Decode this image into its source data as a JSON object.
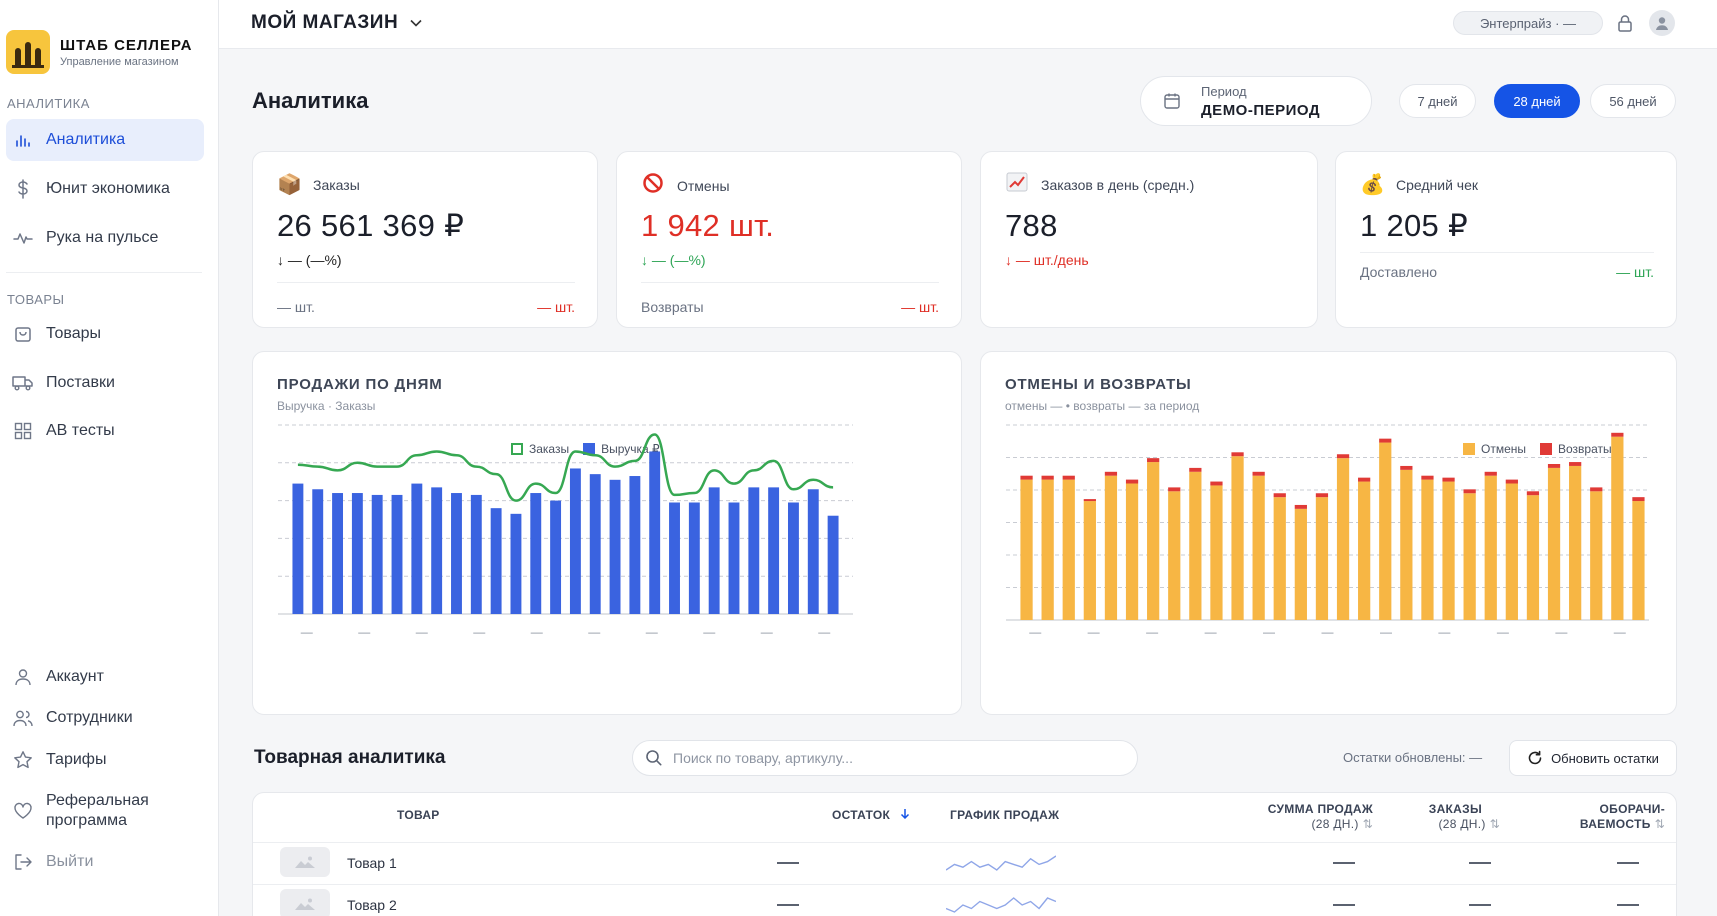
{
  "brand": {
    "title": "ШТАБ СЕЛЛЕРА",
    "subtitle": "Управление магазином"
  },
  "sidebar": {
    "section_analytics": "АНАЛИТИКА",
    "section_goods": "ТОВАРЫ",
    "items": [
      {
        "label": "Аналитика",
        "icon": "bar-chart-icon"
      },
      {
        "label": "Юнит экономика",
        "icon": "dollar-icon"
      },
      {
        "label": "Рука на пульсе",
        "icon": "pulse-icon"
      },
      {
        "label": "Товары",
        "icon": "bag-icon"
      },
      {
        "label": "Поставки",
        "icon": "truck-icon"
      },
      {
        "label": "AB тесты",
        "icon": "grid-icon"
      }
    ],
    "bottom": [
      {
        "label": "Аккаунт",
        "icon": "user-icon"
      },
      {
        "label": "Сотрудники",
        "icon": "users-icon"
      },
      {
        "label": "Тарифы",
        "icon": "star-icon"
      },
      {
        "label": "Реферальная программа",
        "icon": "heart-icon"
      },
      {
        "label": "Выйти",
        "icon": "logout-icon"
      }
    ]
  },
  "topbar": {
    "store": "МОЙ МАГАЗИН",
    "plan": "Энтерпрайз · —"
  },
  "page": {
    "title": "Аналитика"
  },
  "period": {
    "label": "Период",
    "value": "ДЕМО-ПЕРИОД",
    "options": [
      "7 дней",
      "28 дней",
      "56 дней"
    ],
    "selected": "28 дней"
  },
  "kpis": {
    "orders": {
      "title": "Заказы",
      "value": "26 561 369 ₽",
      "change": "↓ — (—%)",
      "foot_left": "— шт.",
      "foot_right": "— шт."
    },
    "cancels": {
      "title": "Отмены",
      "value": "1 942 шт.",
      "change": "↓ — (—%)",
      "foot_left": "Возвраты",
      "foot_right": "— шт."
    },
    "per_day": {
      "title": "Заказов в день (средн.)",
      "value": "788",
      "change": "↓ — шт./день"
    },
    "avg_check": {
      "title": "Средний чек",
      "value": "1 205 ₽",
      "foot_left": "Доставлено",
      "foot_right": "— шт."
    }
  },
  "colors": {
    "accent": "#1554e6",
    "orders_line": "#36a852",
    "revenue_bar": "#3a63e0",
    "cancels_bar": "#f7b644",
    "returns_bar": "#e03a36",
    "negative": "#df2f26",
    "positive": "#2ea556"
  },
  "chart_data": [
    {
      "type": "bar",
      "title": "ПРОДАЖИ ПО ДНЯМ",
      "subtitle": "Выручка · Заказы",
      "categories": [
        "—",
        "—",
        "—",
        "—",
        "—",
        "—",
        "—",
        "—",
        "—",
        "—",
        "—",
        "—",
        "—",
        "—",
        "—",
        "—",
        "—",
        "—",
        "—",
        "—",
        "—",
        "—",
        "—",
        "—",
        "—",
        "—",
        "—",
        "—"
      ],
      "tick_labels": [
        "—",
        "—",
        "—",
        "—",
        "—",
        "—",
        "—",
        "—",
        "—",
        "—"
      ],
      "series": [
        {
          "name": "Выручка ₽",
          "kind": "bar",
          "values": [
            69,
            66,
            64,
            64,
            63,
            63,
            69,
            67,
            64,
            63,
            56,
            53,
            64,
            60,
            77,
            74,
            71,
            73,
            86,
            59,
            59,
            67,
            59,
            67,
            67,
            59,
            66,
            52
          ]
        },
        {
          "name": "Заказы",
          "kind": "line",
          "values": [
            79,
            78,
            76,
            80,
            78,
            78,
            84,
            86,
            84,
            78,
            74,
            60,
            69,
            64,
            86,
            84,
            78,
            81,
            95,
            63,
            64,
            76,
            69,
            76,
            81,
            66,
            71,
            67
          ]
        }
      ],
      "ylim": [
        0,
        100
      ],
      "grid": true,
      "legend": "top-center"
    },
    {
      "type": "bar",
      "title": "ОТМЕНЫ И ВОЗВРАТЫ",
      "subtitle": "отмены —  •  возвраты — за период",
      "categories": [
        "—",
        "—",
        "—",
        "—",
        "—",
        "—",
        "—",
        "—",
        "—",
        "—",
        "—",
        "—",
        "—",
        "—",
        "—",
        "—",
        "—",
        "—",
        "—",
        "—",
        "—",
        "—",
        "—",
        "—",
        "—",
        "—",
        "—",
        "—",
        "—",
        "—"
      ],
      "tick_labels": [
        "—",
        "—",
        "—",
        "—",
        "—",
        "—",
        "—",
        "—",
        "—",
        "—",
        "—"
      ],
      "stacked": true,
      "series": [
        {
          "name": "Отмены",
          "values": [
            72,
            72,
            72,
            61,
            74,
            70,
            81,
            66,
            76,
            69,
            84,
            74,
            63,
            57,
            63,
            83,
            71,
            91,
            77,
            72,
            71,
            65,
            74,
            70,
            64,
            78,
            79,
            66,
            94,
            61
          ]
        },
        {
          "name": "Возвраты",
          "values": [
            2,
            2,
            2,
            1,
            2,
            2,
            2,
            2,
            2,
            2,
            2,
            2,
            2,
            2,
            2,
            2,
            2,
            2,
            2,
            2,
            2,
            2,
            2,
            2,
            2,
            2,
            2,
            2,
            2,
            2
          ]
        }
      ],
      "ylim": [
        0,
        100
      ],
      "grid": true,
      "legend": "top-right"
    }
  ],
  "sales_chart": {
    "title": "ПРОДАЖИ ПО ДНЯМ",
    "subtitle": "Выручка · Заказы",
    "legend_orders": "Заказы",
    "legend_revenue": "Выручка ₽"
  },
  "cancels_chart": {
    "title": "ОТМЕНЫ И ВОЗВРАТЫ",
    "subtitle": "отмены —  •  возвраты — за период",
    "legend_cancels": "Отмены",
    "legend_returns": "Возвраты"
  },
  "product_analytics": {
    "title": "Товарная аналитика",
    "search_placeholder": "Поиск по товару, артикулу...",
    "stock_updated": "Остатки обновлены: —",
    "refresh_label": "Обновить остатки",
    "columns": {
      "product": "ТОВАР",
      "stock": "ОСТАТОК",
      "sales_graph": "ГРАФИК ПРОДАЖ",
      "sales_sum": "СУММА ПРОДАЖ",
      "sales_sum_sub": "(28 ДН.)",
      "orders": "ЗАКАЗЫ",
      "orders_sub": "(28 ДН.)",
      "turnover": "ОБОРАЧИ-",
      "turnover_sub": "ВАЕМОСТЬ"
    },
    "rows": [
      {
        "name": "Товар 1",
        "spark": [
          3,
          5,
          4,
          6,
          4,
          5,
          3,
          6,
          5,
          4,
          7,
          5,
          6,
          8
        ]
      },
      {
        "name": "Товар 2",
        "spark": [
          4,
          3,
          5,
          4,
          6,
          5,
          4,
          5,
          7,
          5,
          6,
          4,
          7,
          6
        ]
      }
    ]
  }
}
